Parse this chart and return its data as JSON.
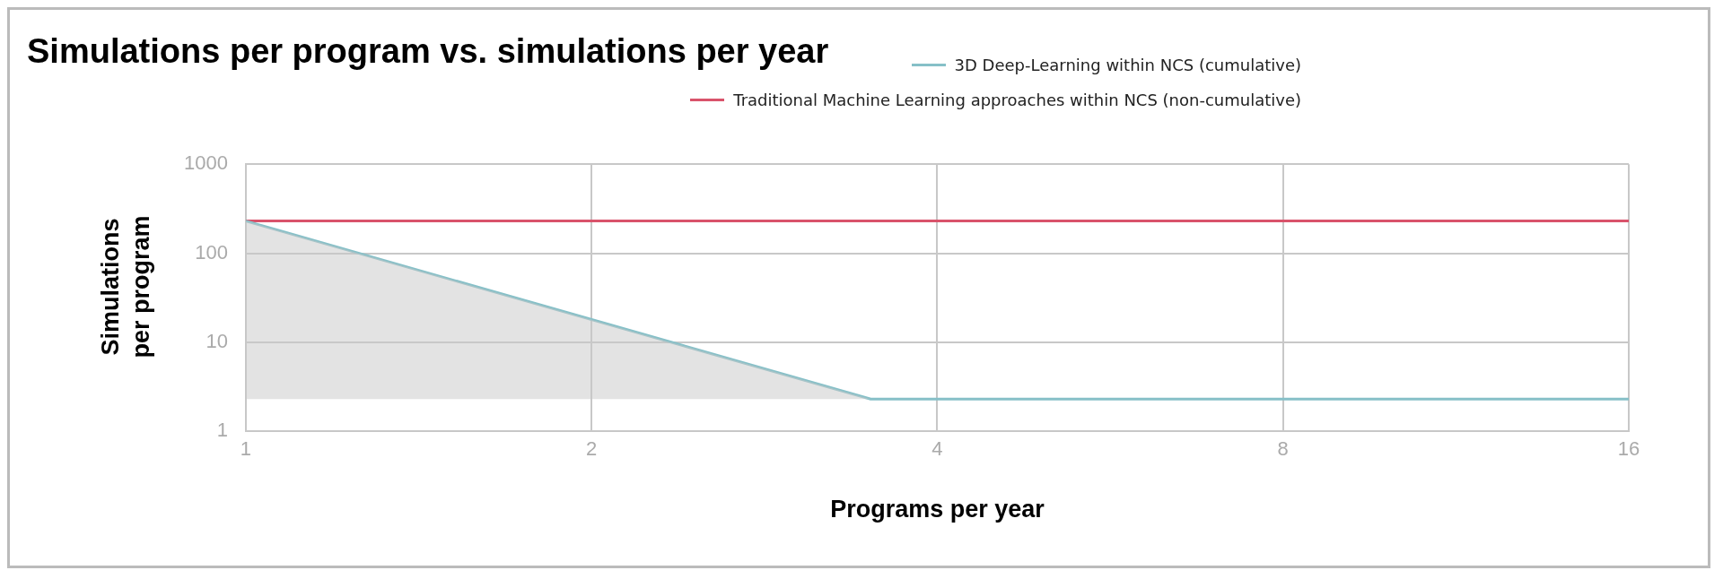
{
  "chart_data": {
    "type": "line",
    "title": "Simulations per program vs. simulations per year",
    "xlabel": "Programs per year",
    "ylabel": "Simulations per program",
    "log": "xy",
    "grid": true,
    "legend": "top right",
    "marker": "none",
    "xlim": [
      1,
      16
    ],
    "xticks": [
      1,
      2,
      4,
      8,
      16
    ],
    "ylim": [
      1,
      1000
    ],
    "yticks": [
      1,
      10,
      100,
      1000
    ],
    "series": [
      {
        "name": "3D Deep-Learning within NCS (cumulative)",
        "color": "#86c0c8",
        "x": [
          1,
          3.5,
          16
        ],
        "values": [
          230,
          2.3,
          2.3
        ],
        "lower": [
          2.3,
          2.3,
          null
        ],
        "upper": [
          230,
          2.3,
          null
        ]
      },
      {
        "name": "Traditional Machine Learning approaches within NCS (non-cumulative)",
        "color": "#d9536b",
        "x": [
          1,
          16
        ],
        "values": [
          230,
          230
        ]
      }
    ]
  }
}
